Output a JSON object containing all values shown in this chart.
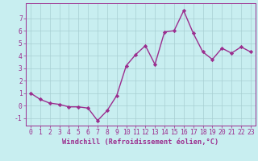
{
  "x": [
    0,
    1,
    2,
    3,
    4,
    5,
    6,
    7,
    8,
    9,
    10,
    11,
    12,
    13,
    14,
    15,
    16,
    17,
    18,
    19,
    20,
    21,
    22,
    23
  ],
  "y": [
    1.0,
    0.5,
    0.2,
    0.1,
    -0.1,
    -0.1,
    -0.2,
    -1.2,
    -0.4,
    0.8,
    3.2,
    4.1,
    4.8,
    3.3,
    5.9,
    6.0,
    7.6,
    5.8,
    4.3,
    3.7,
    4.6,
    4.2,
    4.7,
    4.3
  ],
  "line_color": "#9b2d8e",
  "marker": "D",
  "marker_size": 2.2,
  "bg_color": "#c8eef0",
  "grid_color": "#a8cfd2",
  "xlabel": "Windchill (Refroidissement éolien,°C)",
  "xlim": [
    -0.5,
    23.5
  ],
  "ylim": [
    -1.6,
    8.2
  ],
  "yticks": [
    -1,
    0,
    1,
    2,
    3,
    4,
    5,
    6,
    7
  ],
  "xticks": [
    0,
    1,
    2,
    3,
    4,
    5,
    6,
    7,
    8,
    9,
    10,
    11,
    12,
    13,
    14,
    15,
    16,
    17,
    18,
    19,
    20,
    21,
    22,
    23
  ],
  "tick_color": "#9b2d8e",
  "label_color": "#9b2d8e",
  "spine_color": "#9b2d8e",
  "line_width": 1.0,
  "font_size": 5.8,
  "xlabel_font_size": 6.2
}
